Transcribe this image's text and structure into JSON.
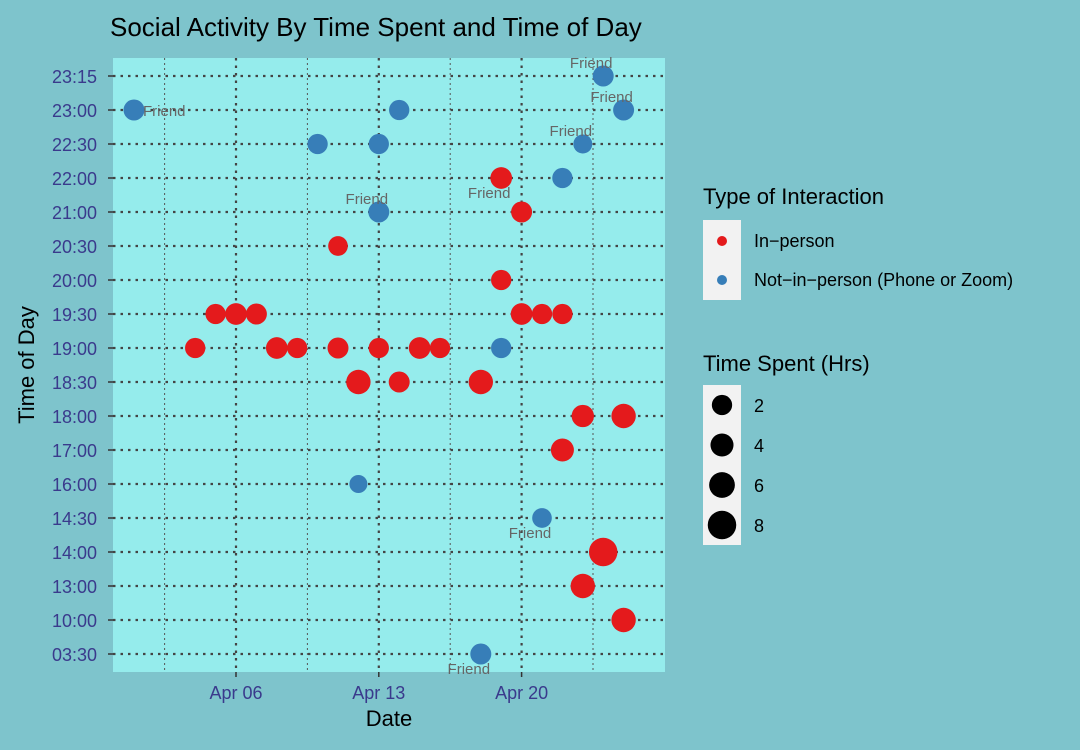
{
  "chart_data": {
    "type": "scatter",
    "title": "Social Activity By Time Spent and Time of Day",
    "xlabel": "Date",
    "ylabel": "Time of Day",
    "x_ticks": [
      {
        "date": "2020-04-06",
        "label": "Apr 06"
      },
      {
        "date": "2020-04-13",
        "label": "Apr 13"
      },
      {
        "date": "2020-04-20",
        "label": "Apr 20"
      }
    ],
    "xlim": [
      "2020-04-01",
      "2020-04-26"
    ],
    "y_categories": [
      "03:30",
      "10:00",
      "13:00",
      "14:00",
      "14:30",
      "16:00",
      "17:00",
      "18:00",
      "18:30",
      "19:00",
      "19:30",
      "20:00",
      "20:30",
      "21:00",
      "22:00",
      "22:30",
      "23:00",
      "23:15"
    ],
    "grid": true,
    "colors": {
      "in_person": "#e41a1c",
      "not_in_person": "#377eb8",
      "panel_bg": "#95ecec",
      "page_bg": "#7ec4cc",
      "label": "#666666"
    },
    "legend": {
      "position": "right",
      "color_title": "Type of Interaction",
      "color_entries": [
        {
          "key": "in_person",
          "label": "In−person"
        },
        {
          "key": "not_in_person",
          "label": "Not−in−person (Phone or Zoom)"
        }
      ],
      "size_title": "Time Spent (Hrs)",
      "size_entries": [
        2,
        4,
        6,
        8
      ]
    },
    "points": [
      {
        "date": "2020-04-01",
        "time": "23:00",
        "type": "not_in_person",
        "hours": 2.5,
        "label": "Friend"
      },
      {
        "date": "2020-04-04",
        "time": "19:00",
        "type": "in_person",
        "hours": 2
      },
      {
        "date": "2020-04-05",
        "time": "19:30",
        "type": "in_person",
        "hours": 2
      },
      {
        "date": "2020-04-06",
        "time": "19:30",
        "type": "in_person",
        "hours": 3
      },
      {
        "date": "2020-04-07",
        "time": "19:30",
        "type": "in_person",
        "hours": 2.5
      },
      {
        "date": "2020-04-08",
        "time": "19:00",
        "type": "in_person",
        "hours": 3
      },
      {
        "date": "2020-04-09",
        "time": "19:00",
        "type": "in_person",
        "hours": 2
      },
      {
        "date": "2020-04-10",
        "time": "22:30",
        "type": "not_in_person",
        "hours": 2
      },
      {
        "date": "2020-04-11",
        "time": "20:30",
        "type": "in_person",
        "hours": 1.5
      },
      {
        "date": "2020-04-11",
        "time": "19:00",
        "type": "in_person",
        "hours": 2.5
      },
      {
        "date": "2020-04-12",
        "time": "18:30",
        "type": "in_person",
        "hours": 5
      },
      {
        "date": "2020-04-12",
        "time": "16:00",
        "type": "not_in_person",
        "hours": 0.3
      },
      {
        "date": "2020-04-13",
        "time": "22:30",
        "type": "not_in_person",
        "hours": 2
      },
      {
        "date": "2020-04-13",
        "time": "21:00",
        "type": "not_in_person",
        "hours": 2.5,
        "label": "Friend"
      },
      {
        "date": "2020-04-13",
        "time": "19:00",
        "type": "in_person",
        "hours": 2
      },
      {
        "date": "2020-04-14",
        "time": "23:00",
        "type": "not_in_person",
        "hours": 2
      },
      {
        "date": "2020-04-14",
        "time": "18:30",
        "type": "in_person",
        "hours": 2.5
      },
      {
        "date": "2020-04-15",
        "time": "19:00",
        "type": "in_person",
        "hours": 3
      },
      {
        "date": "2020-04-16",
        "time": "19:00",
        "type": "in_person",
        "hours": 2
      },
      {
        "date": "2020-04-18",
        "time": "18:30",
        "type": "in_person",
        "hours": 5
      },
      {
        "date": "2020-04-18",
        "time": "03:30",
        "type": "not_in_person",
        "hours": 2.5,
        "label": "Friend"
      },
      {
        "date": "2020-04-19",
        "time": "22:00",
        "type": "in_person",
        "hours": 3,
        "label": "Friend"
      },
      {
        "date": "2020-04-19",
        "time": "20:00",
        "type": "in_person",
        "hours": 2
      },
      {
        "date": "2020-04-19",
        "time": "19:00",
        "type": "not_in_person",
        "hours": 2
      },
      {
        "date": "2020-04-20",
        "time": "21:00",
        "type": "in_person",
        "hours": 2.5
      },
      {
        "date": "2020-04-20",
        "time": "19:30",
        "type": "in_person",
        "hours": 3
      },
      {
        "date": "2020-04-21",
        "time": "19:30",
        "type": "in_person",
        "hours": 2
      },
      {
        "date": "2020-04-21",
        "time": "14:30",
        "type": "not_in_person",
        "hours": 1.5,
        "label": "Friend"
      },
      {
        "date": "2020-04-22",
        "time": "22:00",
        "type": "not_in_person",
        "hours": 2
      },
      {
        "date": "2020-04-22",
        "time": "19:30",
        "type": "in_person",
        "hours": 2
      },
      {
        "date": "2020-04-22",
        "time": "17:00",
        "type": "in_person",
        "hours": 4
      },
      {
        "date": "2020-04-23",
        "time": "22:30",
        "type": "not_in_person",
        "hours": 1,
        "label": "Friend"
      },
      {
        "date": "2020-04-23",
        "time": "18:00",
        "type": "in_person",
        "hours": 3.5
      },
      {
        "date": "2020-04-23",
        "time": "13:00",
        "type": "in_person",
        "hours": 5
      },
      {
        "date": "2020-04-24",
        "time": "23:15",
        "type": "not_in_person",
        "hours": 2.5,
        "label": "Friend"
      },
      {
        "date": "2020-04-24",
        "time": "14:00",
        "type": "in_person",
        "hours": 8
      },
      {
        "date": "2020-04-25",
        "time": "23:00",
        "type": "not_in_person",
        "hours": 2.5,
        "label": "Friend"
      },
      {
        "date": "2020-04-25",
        "time": "18:00",
        "type": "in_person",
        "hours": 5
      },
      {
        "date": "2020-04-25",
        "time": "10:00",
        "type": "in_person",
        "hours": 5
      }
    ]
  }
}
